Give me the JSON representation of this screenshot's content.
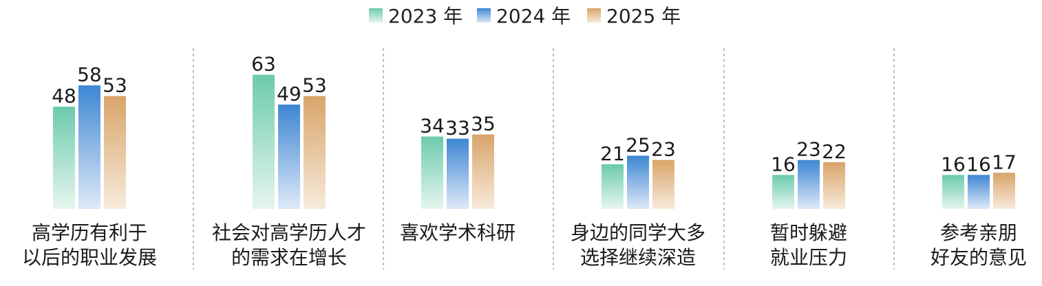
{
  "chart_data": {
    "type": "bar",
    "title": "",
    "xlabel": "",
    "ylabel": "",
    "legend_position": "top-center",
    "grid": false,
    "ylim": [
      0,
      70
    ],
    "categories": [
      [
        "高学历有利于",
        "以后的职业发展"
      ],
      [
        "社会对高学历人才",
        "的需求在增长"
      ],
      [
        "喜欢学术科研"
      ],
      [
        "身边的同学大多",
        "选择继续深造"
      ],
      [
        "暂时躲避",
        "就业压力"
      ],
      [
        "参考亲朋",
        "好友的意见"
      ]
    ],
    "series": [
      {
        "name": "2023 年",
        "values": [
          48,
          63,
          34,
          21,
          16,
          16
        ],
        "color": "#6ccaad"
      },
      {
        "name": "2024 年",
        "values": [
          58,
          49,
          33,
          25,
          23,
          16
        ],
        "color": "#3d86d3"
      },
      {
        "name": "2025 年",
        "values": [
          53,
          53,
          35,
          23,
          22,
          17
        ],
        "color": "#d9a469"
      }
    ]
  }
}
